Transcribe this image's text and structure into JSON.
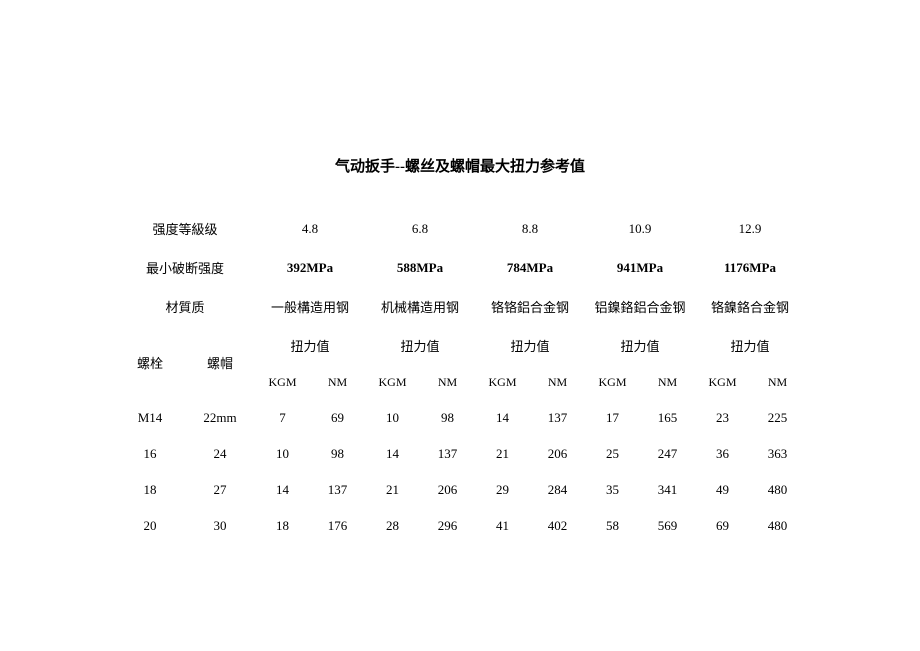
{
  "title": "气动扳手--螺丝及螺帽最大扭力参考值",
  "labels": {
    "strength_grade": "强度等級级",
    "min_break_strength": "最小破断强度",
    "material": "材質质",
    "bolt": "螺栓",
    "nut": "螺帽",
    "torque_value": "扭力值",
    "kgm": "KGM",
    "nm": "NM"
  },
  "grades": [
    "4.8",
    "6.8",
    "8.8",
    "10.9",
    "12.9"
  ],
  "min_break": [
    "392MPa",
    "588MPa",
    "784MPa",
    "941MPa",
    "1176MPa"
  ],
  "materials": [
    "一般構造用钢",
    "机械構造用钢",
    "铬铬鋁合金钢",
    "铝鎳鉻鋁合金钢",
    "铬鎳鉻合金钢"
  ],
  "rows": [
    {
      "bolt": "M14",
      "nut": "22mm",
      "values": [
        [
          "7",
          "69"
        ],
        [
          "10",
          "98"
        ],
        [
          "14",
          "137"
        ],
        [
          "17",
          "165"
        ],
        [
          "23",
          "225"
        ]
      ]
    },
    {
      "bolt": "16",
      "nut": "24",
      "values": [
        [
          "10",
          "98"
        ],
        [
          "14",
          "137"
        ],
        [
          "21",
          "206"
        ],
        [
          "25",
          "247"
        ],
        [
          "36",
          "363"
        ]
      ]
    },
    {
      "bolt": "18",
      "nut": "27",
      "values": [
        [
          "14",
          "137"
        ],
        [
          "21",
          "206"
        ],
        [
          "29",
          "284"
        ],
        [
          "35",
          "341"
        ],
        [
          "49",
          "480"
        ]
      ]
    },
    {
      "bolt": "20",
      "nut": "30",
      "values": [
        [
          "18",
          "176"
        ],
        [
          "28",
          "296"
        ],
        [
          "41",
          "402"
        ],
        [
          "58",
          "569"
        ],
        [
          "69",
          "480"
        ]
      ]
    }
  ],
  "style": {
    "background_color": "#ffffff",
    "text_color": "#000000",
    "title_fontsize": 15,
    "body_fontsize": 13,
    "unit_fontsize": 12
  }
}
